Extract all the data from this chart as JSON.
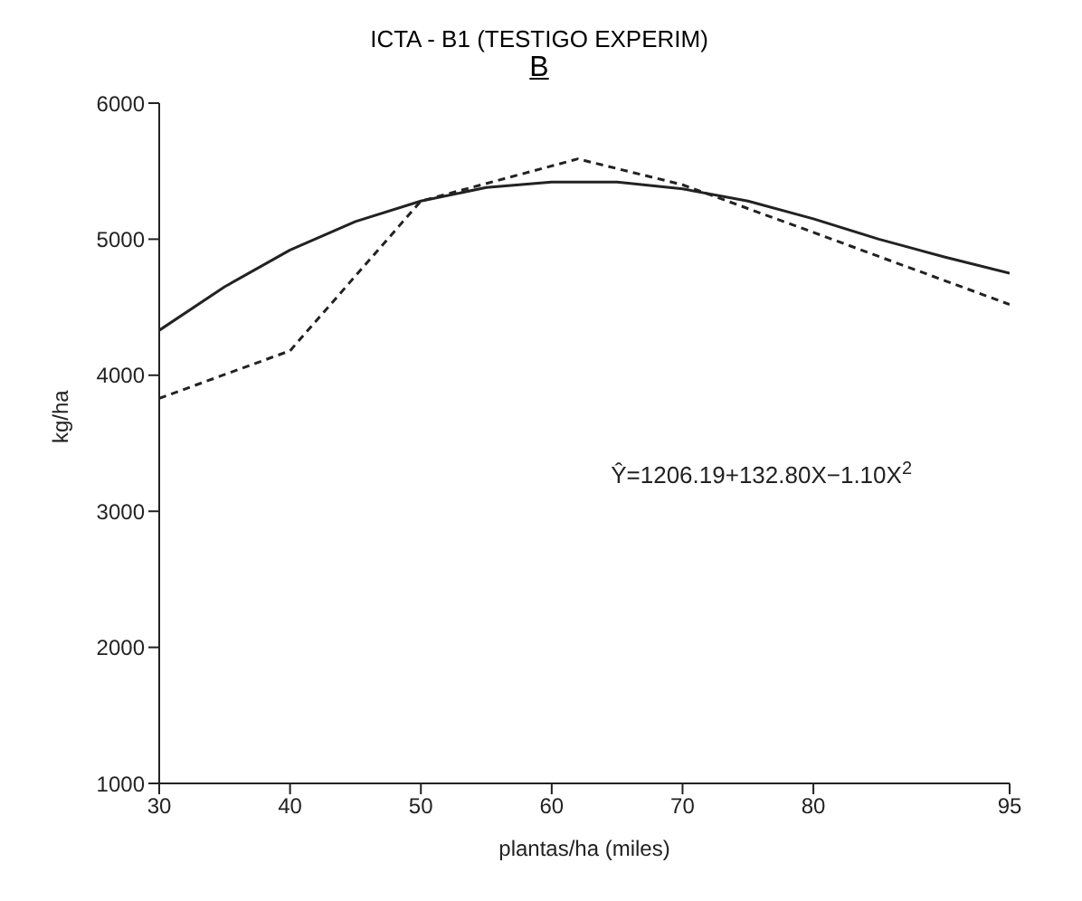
{
  "chart_data": {
    "type": "line",
    "title": "ICTA - B1 (TESTIGO EXPERIM)",
    "subtitle": "B",
    "xlabel": "plantas/ha (miles)",
    "ylabel": "kg/ha",
    "xlim": [
      30,
      95
    ],
    "xticks": [
      30,
      40,
      50,
      60,
      70,
      80,
      95
    ],
    "ylim": [
      1000,
      6000
    ],
    "yticks": [
      1000,
      2000,
      3000,
      4000,
      5000,
      6000
    ],
    "grid": false,
    "legend": false,
    "series": [
      {
        "color": "#222222",
        "line_style": "solid",
        "x": [
          30,
          35,
          40,
          45,
          50,
          55,
          60,
          65,
          70,
          75,
          80,
          85,
          90,
          95
        ],
        "values": [
          4330,
          4650,
          4920,
          5130,
          5280,
          5380,
          5420,
          5420,
          5370,
          5280,
          5150,
          5000,
          4870,
          4750
        ]
      },
      {
        "color": "#222222",
        "line_style": "dashed",
        "x": [
          30,
          40,
          50,
          62,
          70,
          80,
          95
        ],
        "values": [
          3830,
          4180,
          5280,
          5590,
          5400,
          5050,
          4520
        ]
      }
    ],
    "annotations": [
      "Ŷ=1206.19+132.80X−1.10X$^{2}$"
    ]
  }
}
